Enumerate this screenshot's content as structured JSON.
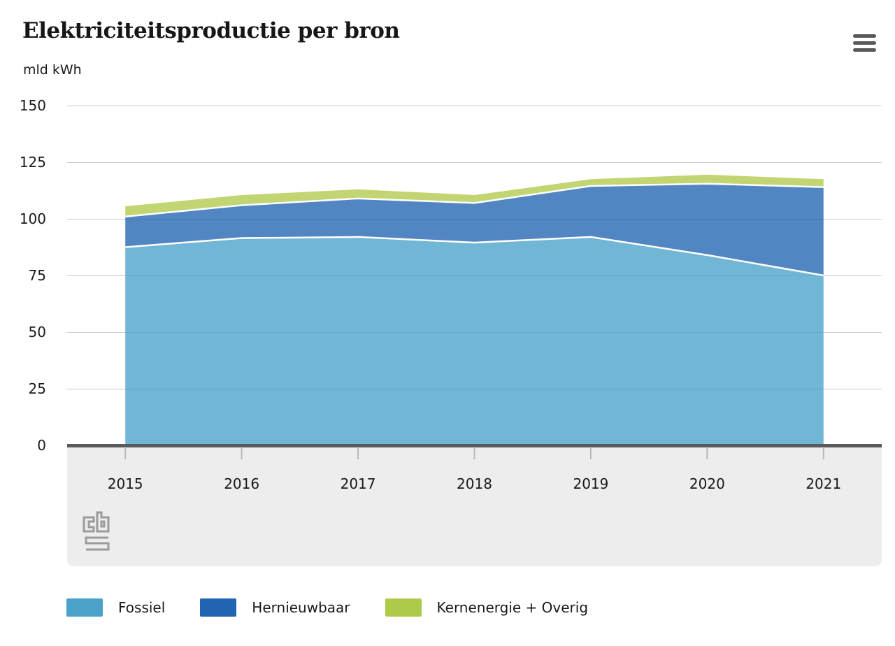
{
  "header": {
    "title": "Elektriciteitsproductie per bron",
    "unit": "mld kWh"
  },
  "menu": {
    "icon": "hamburger-menu-icon"
  },
  "branding": {
    "logo": "cbs-logo"
  },
  "chart_data": {
    "type": "area",
    "stacked": true,
    "title": "Elektriciteitsproductie per bron",
    "ylabel": "mld kWh",
    "xlabel": "",
    "categories": [
      "2015",
      "2016",
      "2017",
      "2018",
      "2019",
      "2020",
      "2021"
    ],
    "series": [
      {
        "name": "Fossiel",
        "color": "#4AA1C9",
        "fill": "rgba(74,161,201,0.78)",
        "values": [
          87.5,
          91.5,
          92,
          89.5,
          92,
          84,
          75
        ]
      },
      {
        "name": "Hernieuwbaar",
        "color": "#2164B1",
        "fill": "rgba(33,100,177,0.78)",
        "values": [
          13.5,
          14.5,
          17,
          17.5,
          22.5,
          31.5,
          39
        ]
      },
      {
        "name": "Kernenergie + Overig",
        "color": "#AFC94A",
        "fill": "rgba(175,201,74,0.78)",
        "values": [
          4.5,
          4.5,
          4,
          3.5,
          3,
          4,
          3.5
        ]
      }
    ],
    "totals": [
      105.5,
      110.5,
      113,
      110.5,
      117.5,
      119.5,
      117.5
    ],
    "y_ticks": [
      0,
      25,
      50,
      75,
      100,
      125,
      150
    ],
    "ylim": [
      0,
      150
    ],
    "grid": true,
    "legend_position": "bottom"
  }
}
